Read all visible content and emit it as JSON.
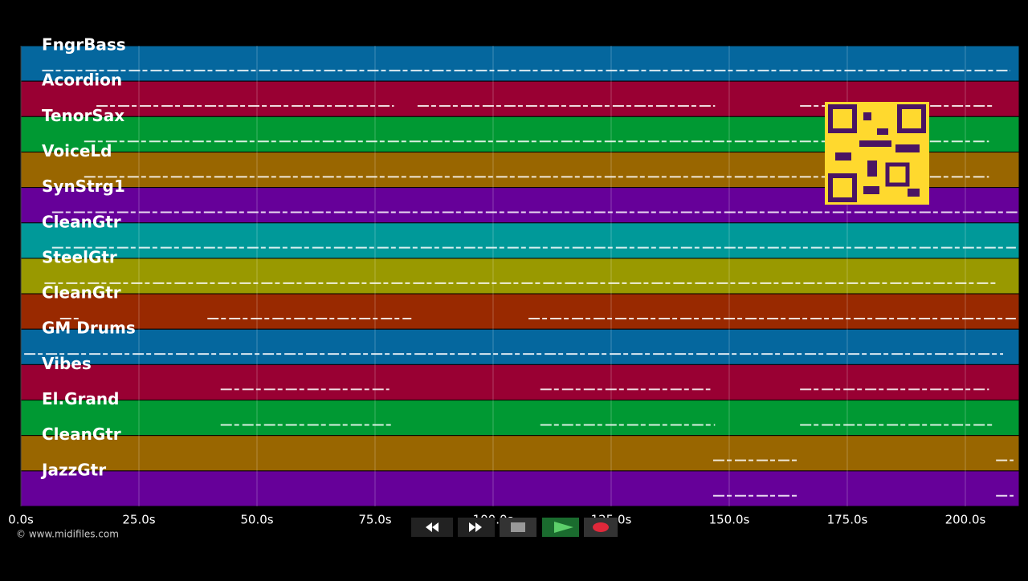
{
  "chart_data": {
    "type": "timeline",
    "xlim": [
      0,
      211.4
    ],
    "xticks": [
      {
        "value": 0,
        "label": "0.0s"
      },
      {
        "value": 25,
        "label": "25.0s"
      },
      {
        "value": 50,
        "label": "50.0s"
      },
      {
        "value": 75,
        "label": "75.0s"
      },
      {
        "value": 100,
        "label": "100.0s"
      },
      {
        "value": 125,
        "label": "125.0s"
      },
      {
        "value": 150,
        "label": "150.0s"
      },
      {
        "value": 175,
        "label": "175.0s"
      },
      {
        "value": 200,
        "label": "200.0s"
      }
    ],
    "grid": true,
    "series": [
      {
        "name": "FngrBass",
        "color": "#05679e",
        "segments": [
          [
            4.5,
            209.5
          ]
        ]
      },
      {
        "name": "Acordion",
        "color": "#990033",
        "segments": [
          [
            16,
            79
          ],
          [
            84,
            147
          ],
          [
            165,
            206
          ]
        ]
      },
      {
        "name": "TenorSax",
        "color": "#009933",
        "segments": [
          [
            13.4,
            205
          ]
        ]
      },
      {
        "name": "VoiceLd",
        "color": "#996600",
        "segments": [
          [
            13.4,
            205
          ]
        ]
      },
      {
        "name": "SynStrg1",
        "color": "#660099",
        "segments": [
          [
            6.6,
            211
          ]
        ]
      },
      {
        "name": "CleanGtr",
        "color": "#009999",
        "segments": [
          [
            6.6,
            210.7
          ]
        ]
      },
      {
        "name": "SteelGtr",
        "color": "#999900",
        "segments": [
          [
            5,
            206.5
          ]
        ]
      },
      {
        "name": "CleanGtr",
        "color": "#992900",
        "segments": [
          [
            8.3,
            12.6
          ],
          [
            39.5,
            82.7
          ],
          [
            107.5,
            210.7
          ]
        ]
      },
      {
        "name": "GM Drums",
        "color": "#05679e",
        "segments": [
          [
            0.7,
            208
          ]
        ]
      },
      {
        "name": "Vibes",
        "color": "#990033",
        "segments": [
          [
            42.3,
            78
          ],
          [
            110,
            146
          ],
          [
            165,
            205
          ]
        ]
      },
      {
        "name": "El.Grand",
        "color": "#009933",
        "segments": [
          [
            42.3,
            79
          ],
          [
            110,
            147
          ],
          [
            165,
            206
          ]
        ]
      },
      {
        "name": "CleanGtr",
        "color": "#996600",
        "segments": [
          [
            146.6,
            164.8
          ],
          [
            206.5,
            210.2
          ]
        ]
      },
      {
        "name": "JazzGtr",
        "color": "#660099",
        "segments": [
          [
            146.6,
            164.8
          ],
          [
            206.5,
            210.2
          ]
        ]
      }
    ]
  },
  "footer": {
    "copyright": "© www.midifiles.com"
  }
}
